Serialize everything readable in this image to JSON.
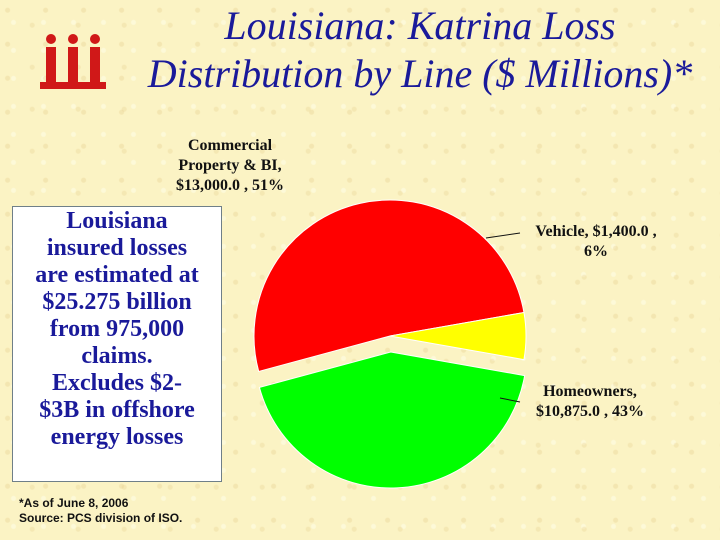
{
  "title": {
    "line1": "Louisiana: Katrina Loss",
    "line2": "Distribution by Line ($ Millions)*"
  },
  "logo": {
    "icon": "iii-logo",
    "text": "iii",
    "color": "#d01818"
  },
  "note": {
    "lines": [
      "Louisiana",
      "insured losses",
      "are estimated at",
      "$25.275 billion",
      "from 975,000",
      "claims.",
      "Excludes $2-",
      "$3B in offshore",
      "energy losses"
    ]
  },
  "footnote": {
    "line1": "*As of June 8, 2006",
    "line2": "Source:  PCS division of ISO."
  },
  "chart_data": {
    "type": "pie",
    "title": "Louisiana: Katrina Loss Distribution by Line ($ Millions)*",
    "slices": [
      {
        "name": "Commercial Property & BI",
        "value": 13000.0,
        "percent": 51,
        "color": "#ff0000",
        "label_lines": [
          "Commercial",
          "Property & BI,",
          "$13,000.0 , 51%"
        ]
      },
      {
        "name": "Vehicle",
        "value": 1400.0,
        "percent": 6,
        "color": "#ffff00",
        "label_lines": [
          "Vehicle, $1,400.0 ,",
          "6%"
        ]
      },
      {
        "name": "Homeowners",
        "value": 10875.0,
        "percent": 43,
        "color": "#00ff00",
        "label_lines": [
          "Homeowners,",
          "$10,875.0 , 43%"
        ]
      }
    ]
  }
}
